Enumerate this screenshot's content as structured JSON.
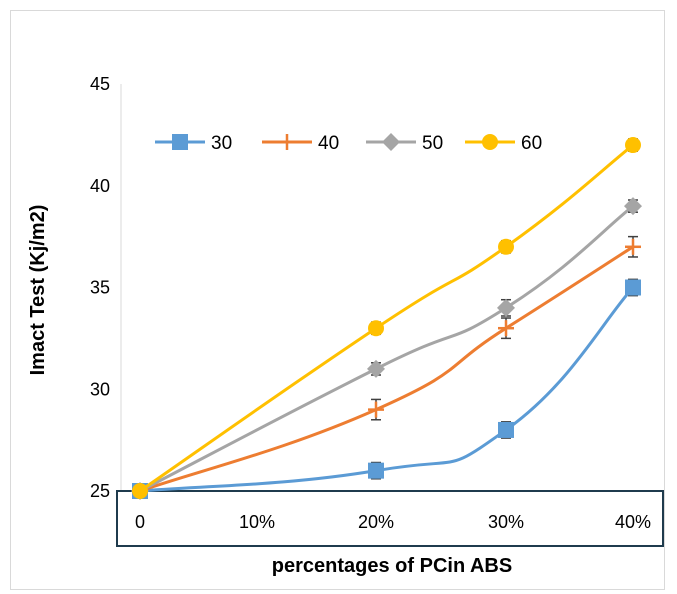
{
  "chart_data": {
    "type": "line",
    "title": "",
    "xlabel": "percentages of PCin ABS",
    "ylabel": "Imact Test (Kj/m2)",
    "categories": [
      "0",
      "10%",
      "20%",
      "30%",
      "40%"
    ],
    "ylim": [
      25,
      45
    ],
    "yticks": [
      "25",
      "30",
      "35",
      "40",
      "45"
    ],
    "grid": false,
    "legend_position": "top",
    "series": [
      {
        "name": "30",
        "color": "#5B9BD5",
        "marker": "square",
        "points": [
          {
            "x": "0",
            "y": 25,
            "err": 0.2
          },
          {
            "x": "20%",
            "y": 26,
            "err": 0.4
          },
          {
            "x": "30%",
            "y": 28,
            "err": 0.4
          },
          {
            "x": "40%",
            "y": 35,
            "err": 0.4
          }
        ]
      },
      {
        "name": "40",
        "color": "#ED7D31",
        "marker": "plus",
        "points": [
          {
            "x": "0",
            "y": 25,
            "err": 0.2
          },
          {
            "x": "20%",
            "y": 29,
            "err": 0.5
          },
          {
            "x": "30%",
            "y": 33,
            "err": 0.5
          },
          {
            "x": "40%",
            "y": 37,
            "err": 0.5
          }
        ]
      },
      {
        "name": "50",
        "color": "#A5A5A5",
        "marker": "diamond",
        "points": [
          {
            "x": "0",
            "y": 25,
            "err": 0.2
          },
          {
            "x": "20%",
            "y": 31,
            "err": 0.3
          },
          {
            "x": "30%",
            "y": 34,
            "err": 0.4
          },
          {
            "x": "40%",
            "y": 39,
            "err": 0.3
          }
        ]
      },
      {
        "name": "60",
        "color": "#FFC000",
        "marker": "circle",
        "points": [
          {
            "x": "0",
            "y": 25,
            "err": 0.2
          },
          {
            "x": "20%",
            "y": 33,
            "err": 0.3
          },
          {
            "x": "30%",
            "y": 37,
            "err": 0.3
          },
          {
            "x": "40%",
            "y": 42,
            "err": 0.3
          }
        ]
      }
    ]
  }
}
